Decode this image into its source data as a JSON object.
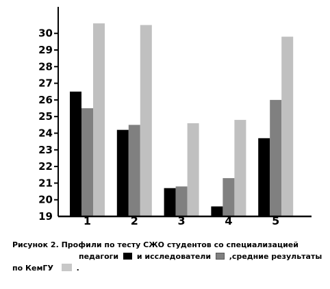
{
  "chart_data": {
    "type": "bar",
    "categories": [
      "1",
      "2",
      "3",
      "4",
      "5"
    ],
    "series": [
      {
        "color": "#000000",
        "values": [
          26.5,
          24.2,
          20.7,
          19.6,
          23.7
        ]
      },
      {
        "color": "#808080",
        "values": [
          25.5,
          24.5,
          20.8,
          21.3,
          26.0
        ]
      },
      {
        "color": "#c0c0c0",
        "values": [
          30.6,
          30.5,
          24.6,
          24.8,
          29.8
        ]
      }
    ],
    "ylim": [
      19,
      31
    ],
    "yticks": [
      19,
      20,
      21,
      22,
      23,
      24,
      25,
      26,
      27,
      28,
      29,
      30
    ],
    "grid": false,
    "legend": "embedded in caption"
  },
  "caption": {
    "line1": "Рисунок 2. Профили по тесту СЖО студентов со специализацией",
    "line2_a": "педагоги",
    "line2_b": "и исследователи",
    "line2_c": ",средние результаты",
    "line3_a": "по КемГУ",
    "line3_b": "."
  }
}
